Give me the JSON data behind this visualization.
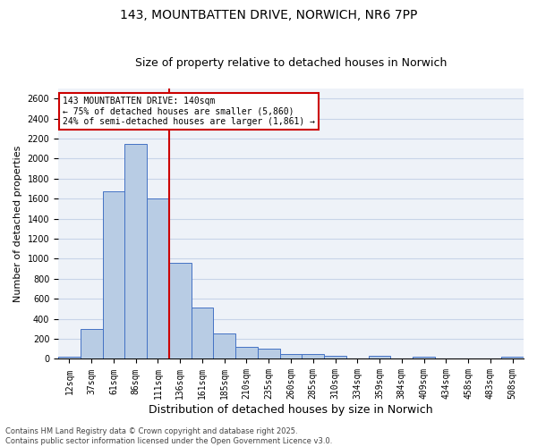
{
  "title_line1": "143, MOUNTBATTEN DRIVE, NORWICH, NR6 7PP",
  "title_line2": "Size of property relative to detached houses in Norwich",
  "xlabel": "Distribution of detached houses by size in Norwich",
  "ylabel": "Number of detached properties",
  "categories": [
    "12sqm",
    "37sqm",
    "61sqm",
    "86sqm",
    "111sqm",
    "136sqm",
    "161sqm",
    "185sqm",
    "210sqm",
    "235sqm",
    "260sqm",
    "285sqm",
    "310sqm",
    "334sqm",
    "359sqm",
    "384sqm",
    "409sqm",
    "434sqm",
    "458sqm",
    "483sqm",
    "508sqm"
  ],
  "values": [
    25,
    300,
    1675,
    2150,
    1600,
    960,
    510,
    250,
    120,
    100,
    50,
    50,
    30,
    0,
    30,
    0,
    25,
    0,
    0,
    0,
    25
  ],
  "bar_color": "#b8cce4",
  "bar_edge_color": "#4472c4",
  "vline_color": "#cc0000",
  "annotation_text": "143 MOUNTBATTEN DRIVE: 140sqm\n← 75% of detached houses are smaller (5,860)\n24% of semi-detached houses are larger (1,861) →",
  "annotation_box_color": "#cc0000",
  "ylim": [
    0,
    2700
  ],
  "yticks": [
    0,
    200,
    400,
    600,
    800,
    1000,
    1200,
    1400,
    1600,
    1800,
    2000,
    2200,
    2400,
    2600
  ],
  "grid_color": "#c8d4e8",
  "bg_color": "#eef2f8",
  "footer_line1": "Contains HM Land Registry data © Crown copyright and database right 2025.",
  "footer_line2": "Contains public sector information licensed under the Open Government Licence v3.0.",
  "title_fontsize": 10,
  "subtitle_fontsize": 9,
  "xlabel_fontsize": 9,
  "ylabel_fontsize": 8,
  "tick_fontsize": 7,
  "footer_fontsize": 6,
  "ann_fontsize": 7
}
